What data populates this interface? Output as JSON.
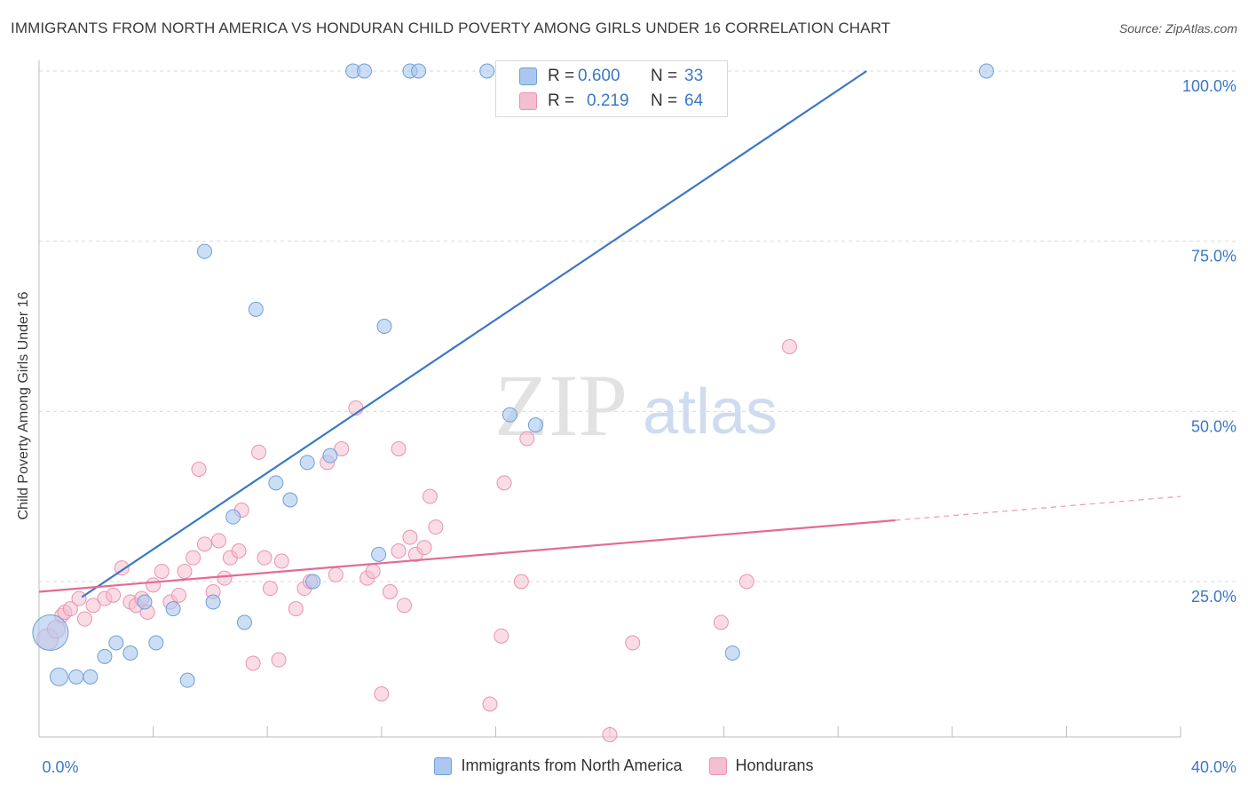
{
  "title": "IMMIGRANTS FROM NORTH AMERICA VS HONDURAN CHILD POVERTY AMONG GIRLS UNDER 16 CORRELATION CHART",
  "source": "Source: ZipAtlas.com",
  "watermark": {
    "zip": "ZIP",
    "atlas": "atlas"
  },
  "stats": {
    "r_label": "R =",
    "n_label": "N =",
    "blue": {
      "r": "0.600",
      "n": "33"
    },
    "pink": {
      "r": "0.219",
      "n": "64"
    }
  },
  "colors": {
    "blue_fill": "#aac8ef",
    "blue_stroke": "#6f9fd8",
    "blue_line": "#3a78c9",
    "pink_fill": "#f6bfd0",
    "pink_stroke": "#e993b0",
    "pink_line": "#e46a94",
    "tick_text": "#3a78c9",
    "grid": "#d9d9d9"
  },
  "chart_data": {
    "type": "scatter",
    "title": "IMMIGRANTS FROM NORTH AMERICA VS HONDURAN CHILD POVERTY AMONG GIRLS UNDER 16 CORRELATION CHART",
    "xlabel": "",
    "ylabel": "Child Poverty Among Girls Under 16",
    "xlim": [
      0,
      40
    ],
    "ylim": [
      0,
      102
    ],
    "x_tick_labels": [
      "0.0%",
      "40.0%"
    ],
    "y_ticks": [
      25,
      50,
      75,
      100
    ],
    "y_tick_labels": [
      "25.0%",
      "50.0%",
      "75.0%",
      "100.0%"
    ],
    "grid": true,
    "legend_position": "bottom",
    "series": [
      {
        "name": "Immigrants from North America",
        "color": "#aac8ef",
        "trend": {
          "x0": 0,
          "y0": 18.5,
          "x1": 29,
          "y1": 100
        },
        "points": [
          [
            0.4,
            17.5,
            20
          ],
          [
            0.7,
            11,
            10
          ],
          [
            1.3,
            11,
            8
          ],
          [
            1.8,
            11,
            8
          ],
          [
            2.3,
            14,
            8
          ],
          [
            2.7,
            16,
            8
          ],
          [
            3.2,
            14.5,
            8
          ],
          [
            3.7,
            22,
            8
          ],
          [
            4.1,
            16,
            8
          ],
          [
            4.7,
            21,
            8
          ],
          [
            5.2,
            10.5,
            8
          ],
          [
            5.8,
            73.5,
            8
          ],
          [
            6.1,
            22,
            8
          ],
          [
            6.8,
            34.5,
            8
          ],
          [
            7.2,
            19,
            8
          ],
          [
            7.6,
            65,
            8
          ],
          [
            8.3,
            39.5,
            8
          ],
          [
            8.8,
            37,
            8
          ],
          [
            9.4,
            42.5,
            8
          ],
          [
            9.6,
            25,
            8
          ],
          [
            10.2,
            43.5,
            8
          ],
          [
            11.0,
            100,
            8
          ],
          [
            11.4,
            100,
            8
          ],
          [
            11.9,
            29,
            8
          ],
          [
            12.1,
            62.5,
            8
          ],
          [
            13.0,
            100,
            8
          ],
          [
            13.3,
            100,
            8
          ],
          [
            15.7,
            100,
            8
          ],
          [
            16.5,
            49.5,
            8
          ],
          [
            17.1,
            100,
            8
          ],
          [
            17.4,
            48,
            8
          ],
          [
            24.3,
            14.5,
            8
          ],
          [
            33.2,
            100,
            8
          ]
        ]
      },
      {
        "name": "Hondurans",
        "color": "#f6bfd0",
        "trend": {
          "x0": 0,
          "y0": 23.5,
          "x1": 30,
          "y1": 34,
          "dash_to_x": 40,
          "dash_to_y": 37.5
        },
        "points": [
          [
            0.3,
            16.5,
            12
          ],
          [
            0.6,
            18,
            10
          ],
          [
            0.8,
            20,
            8
          ],
          [
            0.9,
            20.5,
            8
          ],
          [
            1.1,
            21,
            8
          ],
          [
            1.4,
            22.5,
            8
          ],
          [
            1.6,
            19.5,
            8
          ],
          [
            1.9,
            21.5,
            8
          ],
          [
            2.3,
            22.5,
            8
          ],
          [
            2.6,
            23,
            8
          ],
          [
            2.9,
            27,
            8
          ],
          [
            3.2,
            22,
            8
          ],
          [
            3.4,
            21.5,
            8
          ],
          [
            3.6,
            22.5,
            8
          ],
          [
            3.8,
            20.5,
            8
          ],
          [
            4.0,
            24.5,
            8
          ],
          [
            4.3,
            26.5,
            8
          ],
          [
            4.6,
            22,
            8
          ],
          [
            4.9,
            23,
            8
          ],
          [
            5.1,
            26.5,
            8
          ],
          [
            5.4,
            28.5,
            8
          ],
          [
            5.6,
            41.5,
            8
          ],
          [
            5.8,
            30.5,
            8
          ],
          [
            6.1,
            23.5,
            8
          ],
          [
            6.3,
            31,
            8
          ],
          [
            6.5,
            25.5,
            8
          ],
          [
            6.7,
            28.5,
            8
          ],
          [
            7.0,
            29.5,
            8
          ],
          [
            7.1,
            35.5,
            8
          ],
          [
            7.5,
            13,
            8
          ],
          [
            7.7,
            44,
            8
          ],
          [
            7.9,
            28.5,
            8
          ],
          [
            8.1,
            24,
            8
          ],
          [
            8.4,
            13.5,
            8
          ],
          [
            8.5,
            28,
            8
          ],
          [
            9.0,
            21,
            8
          ],
          [
            9.3,
            24,
            8
          ],
          [
            9.5,
            25,
            8
          ],
          [
            10.1,
            42.5,
            8
          ],
          [
            10.4,
            26,
            8
          ],
          [
            10.6,
            44.5,
            8
          ],
          [
            11.1,
            50.5,
            8
          ],
          [
            11.5,
            25.5,
            8
          ],
          [
            11.7,
            26.5,
            8
          ],
          [
            12.0,
            8.5,
            8
          ],
          [
            12.3,
            23.5,
            8
          ],
          [
            12.6,
            44.5,
            8
          ],
          [
            12.8,
            21.5,
            8
          ],
          [
            13.0,
            31.5,
            8
          ],
          [
            13.2,
            29,
            8
          ],
          [
            13.5,
            30,
            8
          ],
          [
            13.7,
            37.5,
            8
          ],
          [
            13.9,
            33,
            8
          ],
          [
            15.8,
            7,
            8
          ],
          [
            16.2,
            17,
            8
          ],
          [
            16.3,
            39.5,
            8
          ],
          [
            17.1,
            46,
            8
          ],
          [
            16.9,
            25,
            8
          ],
          [
            20.0,
            2.5,
            8
          ],
          [
            20.8,
            16,
            8
          ],
          [
            23.9,
            19,
            8
          ],
          [
            24.8,
            25,
            8
          ],
          [
            26.3,
            59.5,
            8
          ],
          [
            12.6,
            29.5,
            8
          ]
        ]
      }
    ]
  }
}
